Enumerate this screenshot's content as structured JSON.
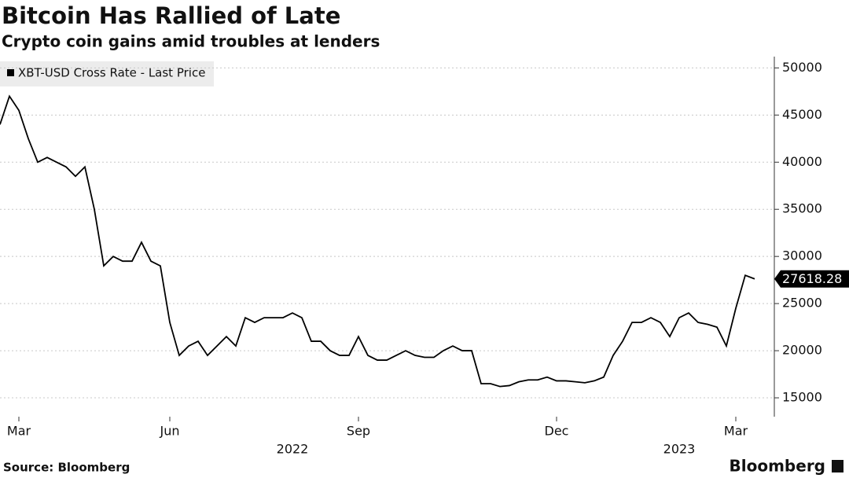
{
  "chart_data": {
    "type": "line",
    "title": "Bitcoin Has Rallied of Late",
    "subtitle": "Crypto coin gains amid troubles at lenders",
    "categories": [
      null,
      null,
      "Mar",
      null,
      null,
      null,
      null,
      null,
      null,
      null,
      null,
      null,
      null,
      null,
      null,
      null,
      null,
      null,
      "Jun",
      null,
      null,
      null,
      null,
      null,
      null,
      null,
      null,
      null,
      null,
      null,
      null,
      null,
      null,
      null,
      null,
      null,
      null,
      null,
      "Sep",
      null,
      null,
      null,
      null,
      null,
      null,
      null,
      null,
      null,
      null,
      null,
      null,
      null,
      null,
      null,
      null,
      null,
      null,
      null,
      null,
      "Dec",
      null,
      null,
      null,
      null,
      null,
      null,
      null,
      null,
      null,
      null,
      null,
      null,
      null,
      null,
      null,
      null,
      null,
      null,
      "Mar",
      null,
      null
    ],
    "x_year_labels": [
      "2022",
      "2023"
    ],
    "series": [
      {
        "name": "XBT-USD Cross Rate - Last Price",
        "color": "#000000",
        "values": [
          44000,
          47000,
          45500,
          42500,
          40000,
          40500,
          40000,
          39500,
          38500,
          39500,
          35000,
          29000,
          30000,
          29500,
          29500,
          31500,
          29500,
          29000,
          23000,
          19500,
          20500,
          21000,
          19500,
          20500,
          21500,
          20500,
          23500,
          23000,
          23500,
          23500,
          23500,
          24000,
          23500,
          21000,
          21000,
          20000,
          19500,
          19500,
          21500,
          19500,
          19000,
          19000,
          19500,
          20000,
          19500,
          19300,
          19300,
          20000,
          20500,
          20000,
          20000,
          16500,
          16500,
          16200,
          16300,
          16700,
          16900,
          16900,
          17200,
          16800,
          16800,
          16700,
          16600,
          16800,
          17200,
          19500,
          21000,
          23000,
          23000,
          23500,
          23000,
          21500,
          23500,
          24000,
          23000,
          22800,
          22500,
          20500,
          24500,
          28000,
          27618.28
        ]
      }
    ],
    "ylim": [
      13000,
      51200
    ],
    "yticks": [
      15000,
      20000,
      25000,
      30000,
      35000,
      40000,
      45000,
      50000
    ],
    "y_axis_side": "right",
    "grid": true,
    "source": "Source: Bloomberg",
    "brand": "Bloomberg"
  }
}
